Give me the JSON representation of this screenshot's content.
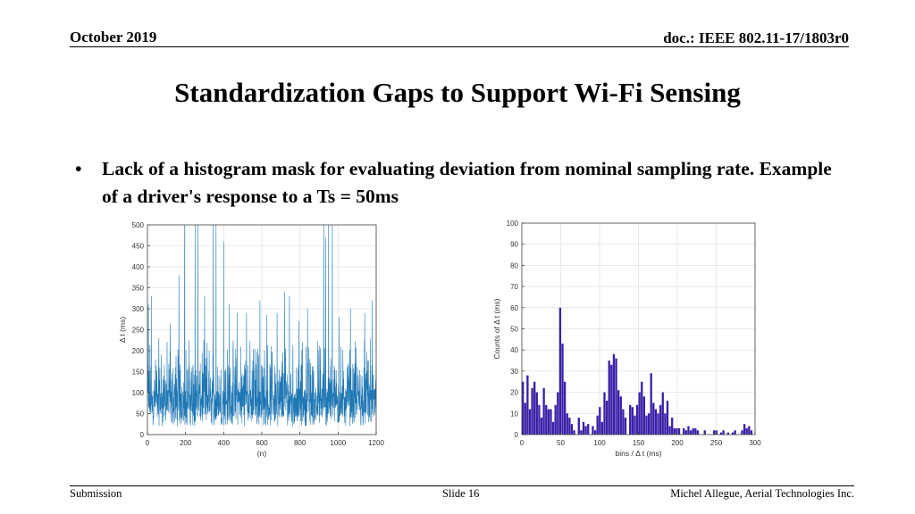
{
  "header": {
    "date": "October 2019",
    "doc_id": "doc.: IEEE 802.11-17/1803r0"
  },
  "slide": {
    "title": "Standardization Gaps to Support Wi-Fi Sensing",
    "bullet": "Lack of a histogram mask for evaluating deviation from nominal sampling rate. Example of a driver's response to a Ts = 50ms",
    "bullet_marker": "•"
  },
  "footer": {
    "left": "Submission",
    "center": "Slide 16",
    "right": "Michel Allegue, Aerial Technologies Inc."
  },
  "chart_data": [
    {
      "type": "line",
      "title": "",
      "xlabel": "(n)",
      "ylabel": "Δ t (ms)",
      "xlim": [
        0,
        1200
      ],
      "ylim": [
        0,
        500
      ],
      "xticks": [
        0,
        200,
        400,
        600,
        800,
        1000,
        1200
      ],
      "yticks": [
        0,
        50,
        100,
        150,
        200,
        250,
        300,
        350,
        400,
        450,
        500
      ],
      "grid": true,
      "color": "#1f77b4",
      "n_points": 1200,
      "typical_range_ms": [
        0,
        200
      ],
      "spikes": [
        {
          "x": 5,
          "y": 310
        },
        {
          "x": 20,
          "y": 330
        },
        {
          "x": 60,
          "y": 230
        },
        {
          "x": 120,
          "y": 265
        },
        {
          "x": 165,
          "y": 380
        },
        {
          "x": 195,
          "y": 500
        },
        {
          "x": 250,
          "y": 500
        },
        {
          "x": 265,
          "y": 500
        },
        {
          "x": 300,
          "y": 330
        },
        {
          "x": 345,
          "y": 500
        },
        {
          "x": 360,
          "y": 500
        },
        {
          "x": 400,
          "y": 460
        },
        {
          "x": 430,
          "y": 310
        },
        {
          "x": 470,
          "y": 290
        },
        {
          "x": 520,
          "y": 290
        },
        {
          "x": 590,
          "y": 320
        },
        {
          "x": 625,
          "y": 285
        },
        {
          "x": 680,
          "y": 290
        },
        {
          "x": 720,
          "y": 340
        },
        {
          "x": 745,
          "y": 330
        },
        {
          "x": 795,
          "y": 270
        },
        {
          "x": 840,
          "y": 300
        },
        {
          "x": 925,
          "y": 500
        },
        {
          "x": 935,
          "y": 470
        },
        {
          "x": 950,
          "y": 500
        },
        {
          "x": 970,
          "y": 500
        },
        {
          "x": 1005,
          "y": 280
        },
        {
          "x": 1065,
          "y": 300
        },
        {
          "x": 1140,
          "y": 290
        },
        {
          "x": 1180,
          "y": 320
        }
      ]
    },
    {
      "type": "bar",
      "title": "",
      "xlabel": "bins / Δ t (ms)",
      "ylabel": "Counts of Δ t (ms)",
      "xlim": [
        0,
        300
      ],
      "ylim": [
        0,
        100
      ],
      "xticks": [
        0,
        50,
        100,
        150,
        200,
        250,
        300
      ],
      "yticks": [
        0,
        10,
        20,
        30,
        40,
        50,
        60,
        70,
        80,
        90,
        100
      ],
      "grid": true,
      "color": "#3a1fa8",
      "bin_width": 3,
      "values": [
        25,
        15,
        28,
        12,
        22,
        25,
        20,
        14,
        8,
        22,
        14,
        12,
        12,
        6,
        14,
        20,
        60,
        43,
        25,
        10,
        8,
        5,
        2,
        0,
        8,
        2,
        6,
        4,
        5,
        0,
        4,
        2,
        9,
        13,
        6,
        20,
        16,
        35,
        33,
        38,
        36,
        21,
        18,
        12,
        8,
        0,
        14,
        13,
        9,
        14,
        20,
        25,
        18,
        9,
        10,
        29,
        15,
        12,
        10,
        14,
        20,
        10,
        16,
        4,
        8,
        3,
        3,
        3,
        0,
        3,
        2,
        4,
        2,
        3,
        3,
        2,
        0,
        0,
        2,
        0,
        0,
        0,
        2,
        2,
        0,
        1,
        2,
        0,
        1,
        0,
        1,
        2,
        0,
        0,
        2,
        5,
        3,
        4,
        2,
        0
      ]
    }
  ]
}
